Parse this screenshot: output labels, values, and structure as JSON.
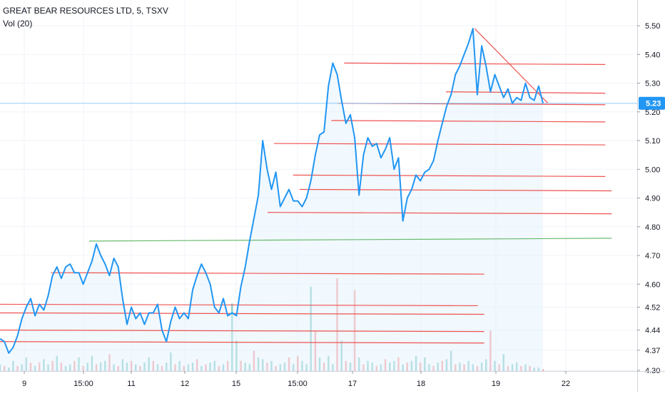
{
  "legend": {
    "title": "GREAT BEAR RESOURCES LTD, 5, TSXV",
    "volume": "Vol (20)"
  },
  "colors": {
    "price_line": "#2196f3",
    "price_fill": "#e3f2fd",
    "resistance": "#ef5350",
    "support": "#66bb6a",
    "current_price_line": "#90caf9",
    "price_tag": "#2196f3",
    "vol_up": "#26a69a",
    "vol_down": "#ef5350"
  },
  "chart_data": {
    "type": "line",
    "y_tick_labels": [
      "5.50",
      "5.40",
      "5.30",
      "5.20",
      "5.10",
      "5.00",
      "4.90",
      "4.80",
      "4.70",
      "4.60",
      "4.52",
      "4.44",
      "4.37",
      "4.30"
    ],
    "x_tick_labels": [
      "9",
      "15:00",
      "11",
      "12",
      "15",
      "15:00",
      "17",
      "18",
      "19",
      "22"
    ],
    "current_price": "5.23",
    "ylim": [
      4.3,
      5.53
    ],
    "series": [
      {
        "values": [
          4.41,
          4.4,
          4.36,
          4.38,
          4.42,
          4.48,
          4.52,
          4.55,
          4.49,
          4.53,
          4.51,
          4.56,
          4.63,
          4.66,
          4.62,
          4.66,
          4.67,
          4.64,
          4.64,
          4.6,
          4.64,
          4.68,
          4.74,
          4.7,
          4.67,
          4.63,
          4.69,
          4.66,
          4.55,
          4.46,
          4.52,
          4.48,
          4.5,
          4.46,
          4.5,
          4.5,
          4.53,
          4.44,
          4.4,
          4.47,
          4.52,
          4.48,
          4.5,
          4.48,
          4.58,
          4.63,
          4.67,
          4.64,
          4.6,
          4.52,
          4.5,
          4.55,
          4.49,
          4.5,
          4.49,
          4.59,
          4.66,
          4.75,
          4.83,
          4.91,
          5.1,
          5.0,
          4.93,
          4.99,
          4.87,
          4.9,
          4.93,
          4.89,
          4.89,
          4.87,
          4.9,
          4.96,
          5.05,
          5.12,
          5.13,
          5.29,
          5.37,
          5.33,
          5.24,
          5.16,
          5.19,
          5.11,
          4.91,
          5.05,
          5.11,
          5.08,
          5.09,
          5.04,
          5.07,
          5.11,
          5.0,
          5.04,
          4.82,
          4.9,
          4.93,
          4.98,
          4.96,
          4.99,
          5.0,
          5.03,
          5.1,
          5.16,
          5.22,
          5.26,
          5.33,
          5.36,
          5.4,
          5.44,
          5.49,
          5.26,
          5.43,
          5.36,
          5.27,
          5.33,
          5.29,
          5.25,
          5.28,
          5.23,
          5.25,
          5.24,
          5.3,
          5.25,
          5.24,
          5.29,
          5.23
        ]
      }
    ],
    "volume_values": [
      4,
      3,
      2,
      6,
      3,
      4,
      8,
      5,
      3,
      5,
      7,
      4,
      6,
      9,
      5,
      3,
      4,
      6,
      8,
      3,
      5,
      9,
      4,
      5,
      6,
      10,
      4,
      3,
      7,
      5,
      6,
      4,
      3,
      5,
      8,
      6,
      4,
      3,
      5,
      11,
      4,
      6,
      3,
      4,
      5,
      7,
      3,
      4,
      5,
      6,
      3,
      4,
      6,
      40,
      18,
      6,
      5,
      4,
      12,
      8,
      7,
      5,
      6,
      3,
      4,
      5,
      8,
      4,
      9,
      6,
      4,
      50,
      24,
      8,
      5,
      9,
      4,
      55,
      18,
      6,
      5,
      48,
      8,
      4,
      6,
      5,
      3,
      4,
      7,
      5,
      6,
      8,
      4,
      5,
      6,
      9,
      5,
      8,
      4,
      3,
      5,
      6,
      7,
      12,
      4,
      5,
      4,
      6,
      4,
      3,
      5,
      7,
      24,
      6,
      4,
      10,
      3,
      4,
      5,
      3,
      4,
      3,
      2,
      2,
      1
    ],
    "volume_up": [
      1,
      0,
      1,
      1,
      0,
      1,
      1,
      0,
      1,
      0,
      1,
      1,
      0,
      1,
      0,
      1,
      1,
      0,
      1,
      0,
      1,
      1,
      0,
      1,
      1,
      0,
      1,
      0,
      1,
      1,
      0,
      1,
      0,
      1,
      1,
      0,
      1,
      0,
      1,
      1,
      0,
      1,
      0,
      1,
      1,
      0,
      1,
      0,
      1,
      1,
      0,
      1,
      0,
      1,
      1,
      0,
      1,
      1,
      0,
      1,
      1,
      0,
      1,
      0,
      1,
      1,
      0,
      1,
      0,
      1,
      1,
      1,
      0,
      1,
      0,
      1,
      1,
      0,
      1,
      0,
      1,
      0,
      1,
      0,
      1,
      1,
      0,
      1,
      0,
      1,
      1,
      0,
      1,
      0,
      1,
      1,
      0,
      1,
      1,
      0,
      1,
      0,
      1,
      1,
      0,
      1,
      0,
      1,
      1,
      0,
      1,
      1,
      0,
      1,
      0,
      1,
      0,
      1,
      1,
      0,
      1,
      0,
      1,
      1,
      0
    ],
    "horizontal_levels": [
      {
        "price": 5.23,
        "from": 0.53,
        "to": 0.95,
        "color": "resistance"
      },
      {
        "price": 5.17,
        "from": 0.52,
        "to": 0.95,
        "color": "resistance"
      },
      {
        "price": 5.09,
        "from": 0.43,
        "to": 0.95,
        "color": "resistance"
      },
      {
        "price": 4.98,
        "from": 0.46,
        "to": 0.95,
        "color": "resistance"
      },
      {
        "price": 4.93,
        "from": 0.47,
        "to": 0.96,
        "color": "resistance"
      },
      {
        "price": 4.85,
        "from": 0.42,
        "to": 0.96,
        "color": "resistance"
      },
      {
        "price": 5.37,
        "from": 0.54,
        "to": 0.95,
        "color": "resistance"
      },
      {
        "price": 5.27,
        "from": 0.7,
        "to": 0.95,
        "color": "resistance"
      },
      {
        "price": 4.75,
        "from": 0.14,
        "to": 0.96,
        "color": "support"
      },
      {
        "price": 4.64,
        "from": 0.08,
        "to": 0.76,
        "color": "resistance"
      },
      {
        "price": 4.53,
        "from": 0.0,
        "to": 0.75,
        "color": "resistance"
      },
      {
        "price": 4.5,
        "from": 0.0,
        "to": 0.76,
        "color": "resistance"
      },
      {
        "price": 4.44,
        "from": 0.0,
        "to": 0.76,
        "color": "resistance"
      },
      {
        "price": 4.4,
        "from": 0.0,
        "to": 0.76,
        "color": "resistance"
      }
    ],
    "trend_line": {
      "from_price": 5.49,
      "to_price": 5.23,
      "from_pos": 0.745,
      "to_pos": 0.86
    }
  }
}
